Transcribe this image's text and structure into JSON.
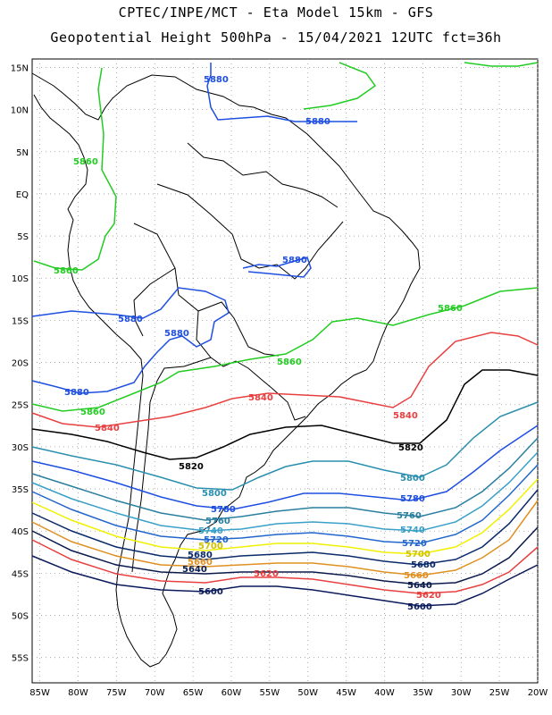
{
  "header": {
    "line1": "CPTEC/INPE/MCT -  Eta Model 15km - GFS",
    "line2": "Geopotential Height 500hPa - 15/04/2021 12UTC fct=36h"
  },
  "map": {
    "lon_range": [
      -86,
      -20
    ],
    "lat_range": [
      -58,
      16
    ],
    "lat_ticks": [
      "15N",
      "10N",
      "5N",
      "EQ",
      "5S",
      "10S",
      "15S",
      "20S",
      "25S",
      "30S",
      "35S",
      "40S",
      "45S",
      "50S",
      "55S"
    ],
    "lon_ticks": [
      "85W",
      "80W",
      "75W",
      "70W",
      "65W",
      "60W",
      "55W",
      "50W",
      "45W",
      "40W",
      "35W",
      "30W",
      "25W",
      "20W"
    ],
    "contours": [
      {
        "value": "5880",
        "color": "#1f4fe0"
      },
      {
        "value": "5860",
        "color": "#22cc22"
      },
      {
        "value": "5840",
        "color": "#e84040"
      },
      {
        "value": "5820",
        "color": "#000000"
      },
      {
        "value": "5800",
        "color": "#2a8fae"
      },
      {
        "value": "5780",
        "color": "#1f4fe0"
      },
      {
        "value": "5760",
        "color": "#2a7fa0"
      },
      {
        "value": "5740",
        "color": "#3aa0c8"
      },
      {
        "value": "5720",
        "color": "#2266cc"
      },
      {
        "value": "5700",
        "color": "#f0f000"
      },
      {
        "value": "5680",
        "color": "#0a2a6a"
      },
      {
        "value": "5660",
        "color": "#e09020"
      },
      {
        "value": "5640",
        "color": "#0a1a4a"
      },
      {
        "value": "5620",
        "color": "#e84040"
      },
      {
        "value": "5600",
        "color": "#0a1a5a"
      }
    ],
    "labels": {
      "l5880a": "5880",
      "l5880b": "5880",
      "l5880c": "5880",
      "l5880d": "5880",
      "l5880e": "5880",
      "l5880f": "5880",
      "l5860a": "5860",
      "l5860b": "5860",
      "l5860c": "5860",
      "l5860d": "5860",
      "l5860e": "5860",
      "l5840a": "5840",
      "l5840b": "5840",
      "l5840c": "5840",
      "l5820a": "5820",
      "l5820b": "5820",
      "l5800a": "5800",
      "l5800b": "5800",
      "l5780a": "5780",
      "l5780b": "5780",
      "l5760a": "5760",
      "l5760b": "5760",
      "l5740a": "5740",
      "l5740b": "5740",
      "l5720a": "5720",
      "l5720b": "5720",
      "l5700a": "5700",
      "l5700b": "5700",
      "l5680a": "5680",
      "l5680b": "5680",
      "l5660a": "5660",
      "l5660b": "5660",
      "l5640a": "5640",
      "l5640b": "5640",
      "l5620a": "5620",
      "l5620b": "5620",
      "l5600a": "5600",
      "l5600b": "5600"
    }
  }
}
